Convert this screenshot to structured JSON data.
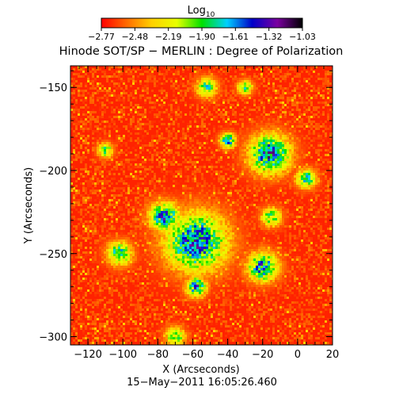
{
  "chart_data": {
    "type": "heatmap",
    "title": "Hinode SOT/SP − MERLIN : Degree of Polarization",
    "xlabel": "X (Arcseconds)",
    "ylabel": "Y (Arcseconds)",
    "footer": "15−May−2011 16:05:26.460",
    "colorbar": {
      "label_base": "Log",
      "label_sub": "10",
      "min": -2.77,
      "max": -1.03,
      "tick_labels": [
        "−2.77",
        "−2.48",
        "−2.19",
        "−1.90",
        "−1.61",
        "−1.32",
        "−1.03"
      ],
      "colors": [
        "#ff0000",
        "#ff6a00",
        "#ffd000",
        "#e8ff00",
        "#00e000",
        "#00d0ff",
        "#0000c8",
        "#7a00a0",
        "#000000"
      ]
    },
    "xlim": [
      -130,
      20
    ],
    "ylim": [
      -305,
      -137
    ],
    "xticks": [
      -120,
      -100,
      -80,
      -60,
      -40,
      -20,
      0,
      20
    ],
    "xtick_labels": [
      "−120",
      "−100",
      "−80",
      "−60",
      "−40",
      "−20",
      "0",
      "20"
    ],
    "yticks": [
      -150,
      -200,
      -250,
      -300
    ],
    "ytick_labels": [
      "−150",
      "−200",
      "−250",
      "−300"
    ],
    "background_level": -2.7,
    "features": [
      {
        "x": -58,
        "y": -243,
        "spread": 12,
        "peak": -1.45
      },
      {
        "x": -76,
        "y": -228,
        "spread": 6,
        "peak": -1.5
      },
      {
        "x": -16,
        "y": -190,
        "spread": 8,
        "peak": -1.45
      },
      {
        "x": -40,
        "y": -182,
        "spread": 3,
        "peak": -1.5
      },
      {
        "x": -20,
        "y": -258,
        "spread": 6,
        "peak": -1.55
      },
      {
        "x": -58,
        "y": -270,
        "spread": 4,
        "peak": -1.55
      },
      {
        "x": -102,
        "y": -250,
        "spread": 5,
        "peak": -1.75
      },
      {
        "x": -52,
        "y": -150,
        "spread": 4,
        "peak": -1.8
      },
      {
        "x": -15,
        "y": -228,
        "spread": 4,
        "peak": -1.85
      },
      {
        "x": -110,
        "y": -188,
        "spread": 3,
        "peak": -1.85
      },
      {
        "x": 5,
        "y": -205,
        "spread": 4,
        "peak": -1.75
      },
      {
        "x": -70,
        "y": -300,
        "spread": 4,
        "peak": -1.9
      },
      {
        "x": -30,
        "y": -150,
        "spread": 3,
        "peak": -1.85
      }
    ]
  }
}
